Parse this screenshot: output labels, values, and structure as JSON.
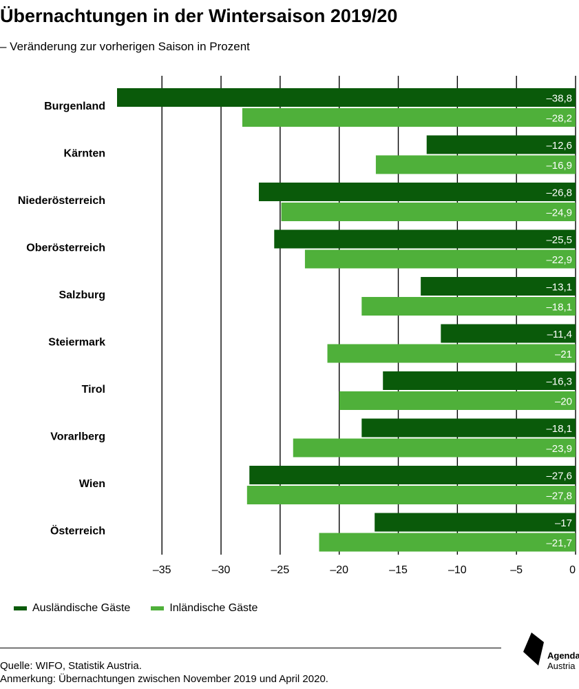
{
  "title": "Übernachtungen in der Wintersaison 2019/20",
  "subtitle": "– Veränderung zur vorherigen Saison in Prozent",
  "legend": {
    "foreign": "Ausländische Gäste",
    "domestic": "Inländische Gäste"
  },
  "footer": {
    "source": "Quelle: WIFO, Statistik Austria.",
    "note": "Anmerkung: Übernachtungen zwischen November 2019 und April 2020.",
    "logo_line1": "Agenda",
    "logo_line2": "Austria"
  },
  "colors": {
    "foreign": "#0a5a0a",
    "domestic": "#4fb03a",
    "value_label": "#ffffff",
    "grid": "#000000"
  },
  "chart_data": {
    "type": "bar",
    "orientation": "horizontal",
    "categories": [
      "Burgenland",
      "Kärnten",
      "Niederösterreich",
      "Oberösterreich",
      "Salzburg",
      "Steiermark",
      "Tirol",
      "Vorarlberg",
      "Wien",
      "Österreich"
    ],
    "series": [
      {
        "name": "Ausländische Gäste",
        "values": [
          -38.8,
          -12.6,
          -26.8,
          -25.5,
          -13.1,
          -11.4,
          -16.3,
          -18.1,
          -27.6,
          -17
        ]
      },
      {
        "name": "Inländische Gäste",
        "values": [
          -28.2,
          -16.9,
          -24.9,
          -22.9,
          -18.1,
          -21,
          -20,
          -23.9,
          -27.8,
          -21.7
        ]
      }
    ],
    "value_labels": [
      [
        "–38,8",
        "–12,6",
        "–26,8",
        "–25,5",
        "–13,1",
        "–11,4",
        "–16,3",
        "–18,1",
        "–27,6",
        "–17"
      ],
      [
        "–28,2",
        "–16,9",
        "–24,9",
        "–22,9",
        "–18,1",
        "–21",
        "–20",
        "–23,9",
        "–27,8",
        "–21,7"
      ]
    ],
    "xticks": [
      -35,
      -30,
      -25,
      -20,
      -15,
      -10,
      -5,
      0
    ],
    "xtick_labels": [
      "–35",
      "–30",
      "–25",
      "–20",
      "–15",
      "–10",
      "–5",
      "0"
    ],
    "xlim": [
      -38.8,
      0
    ],
    "grid": "vertical",
    "legend_position": "bottom-left"
  }
}
